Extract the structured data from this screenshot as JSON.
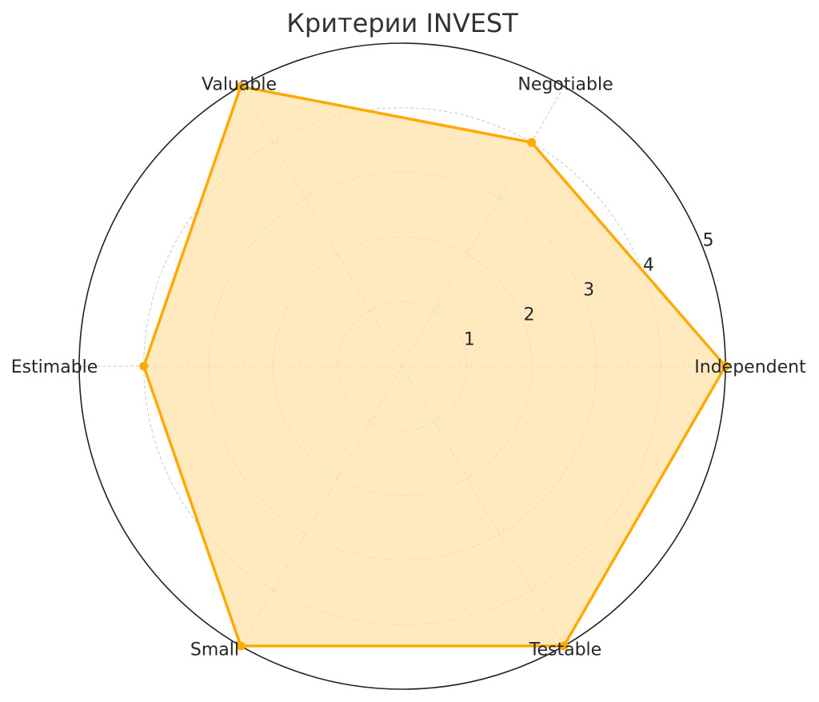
{
  "chart_data": {
    "type": "radar",
    "title": "Критерии INVEST",
    "categories": [
      "Independent",
      "Negotiable",
      "Valuable",
      "Estimable",
      "Small",
      "Testable"
    ],
    "series": [
      {
        "values": [
          5,
          4,
          5,
          4,
          5,
          5
        ]
      }
    ],
    "rlim": [
      0,
      5
    ],
    "r_ticks": [
      1,
      2,
      3,
      4,
      5
    ],
    "grid": true,
    "colors": {
      "line": "#FFAA00",
      "fill": "#FFE0A3",
      "grid": "#c8c8c8",
      "frame": "#222222"
    }
  }
}
